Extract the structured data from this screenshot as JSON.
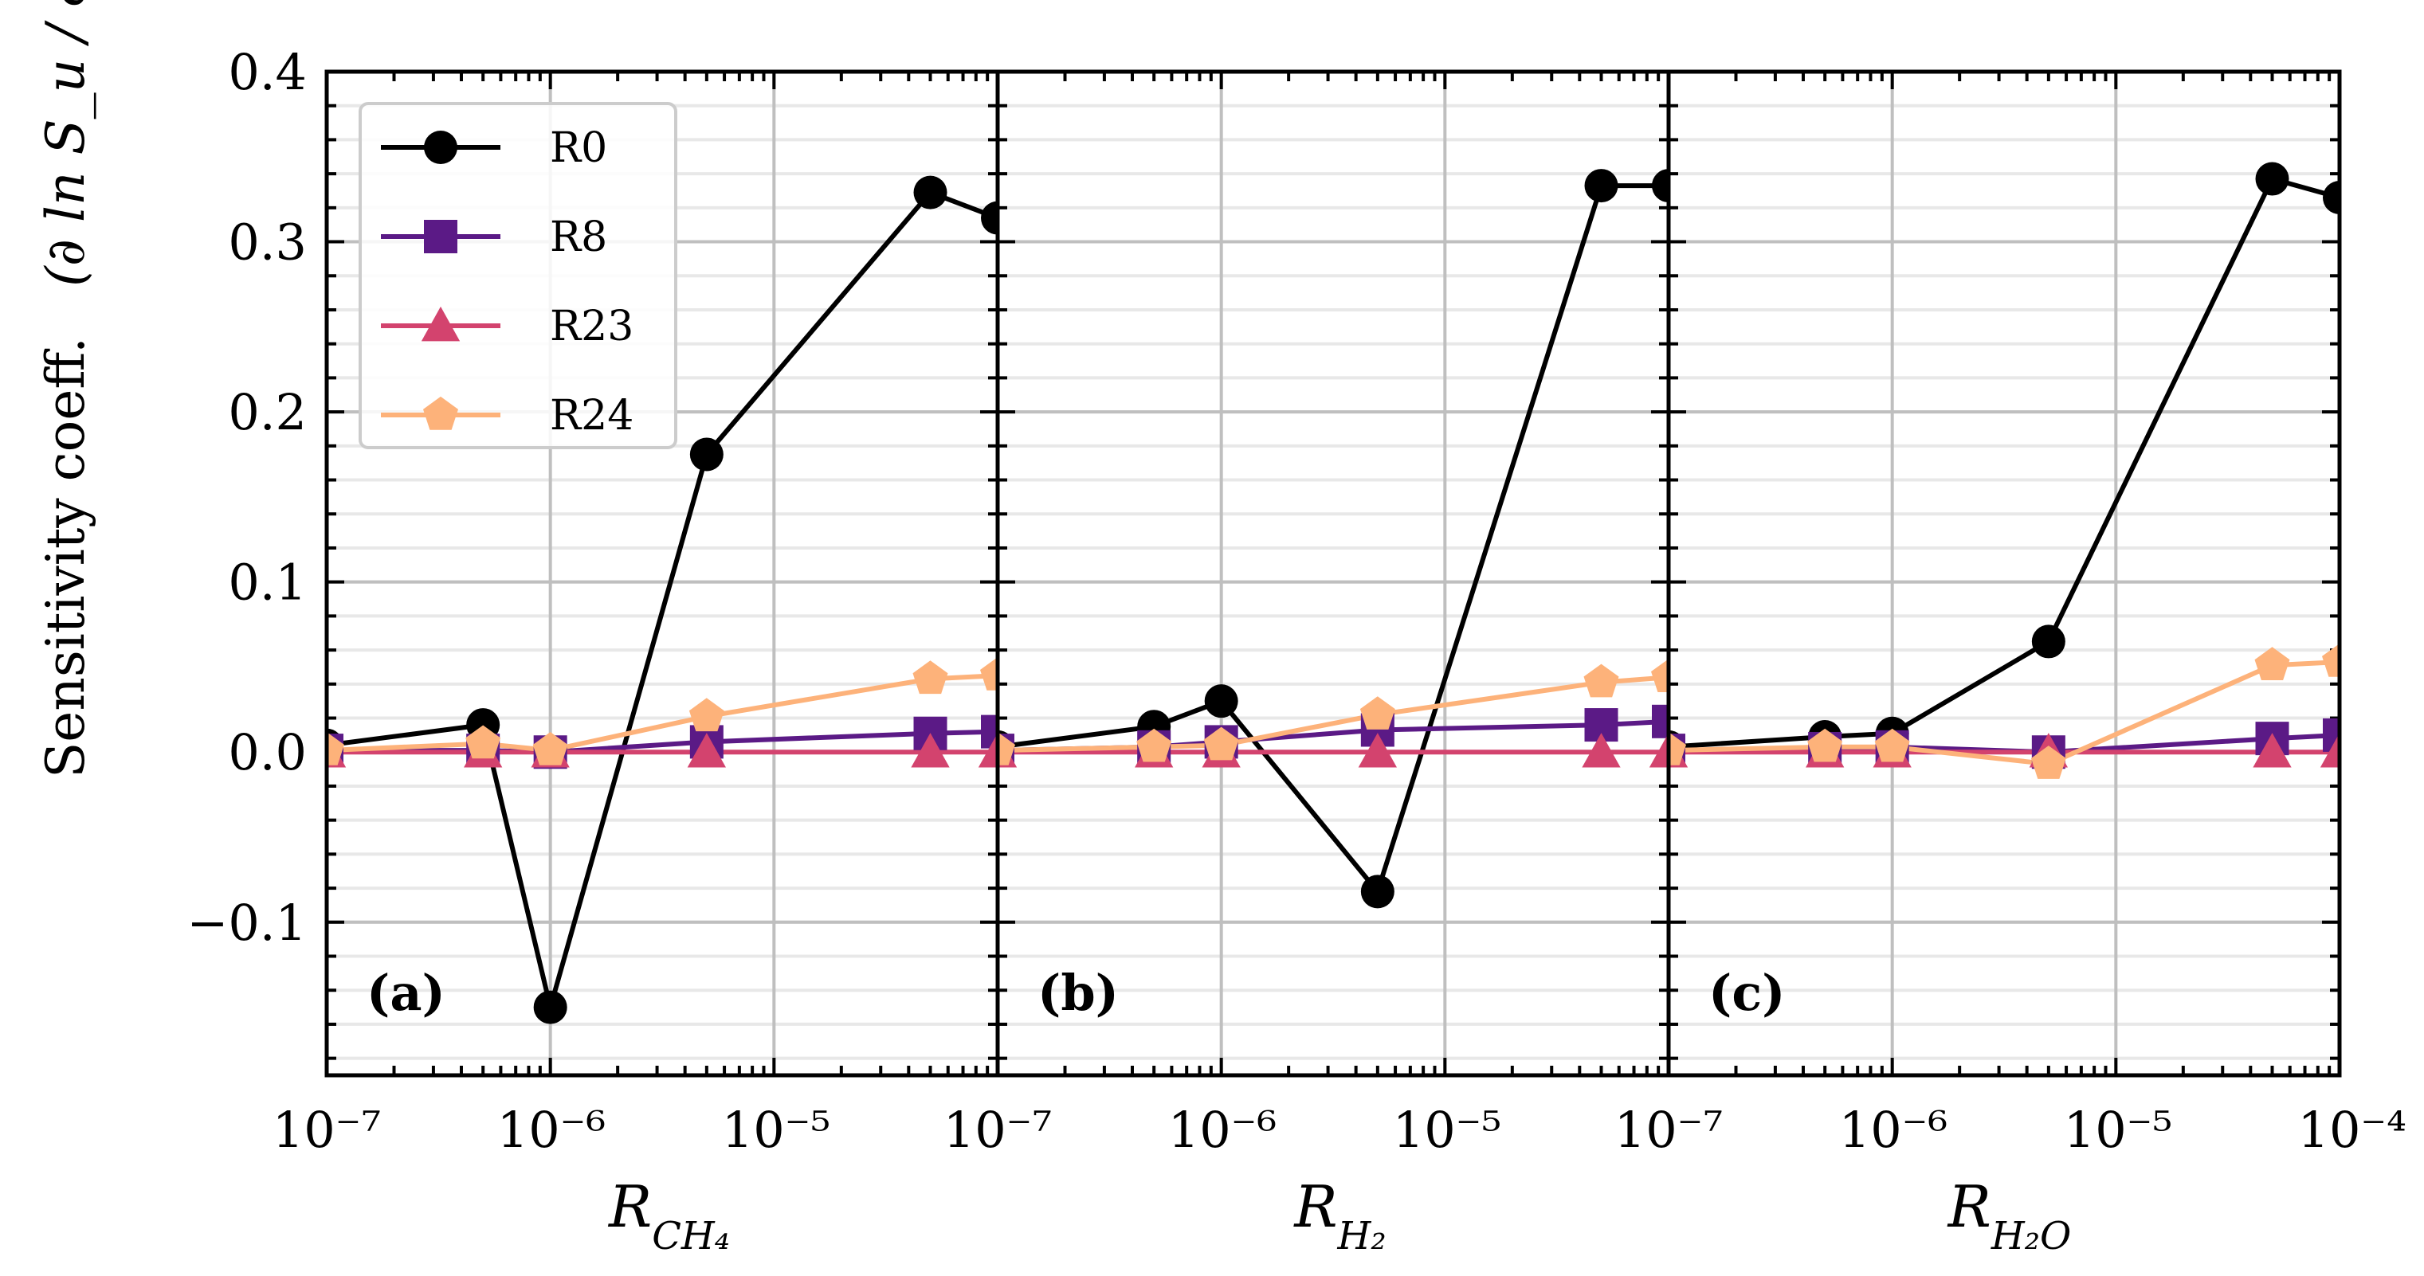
{
  "chart_data": [
    {
      "type": "line",
      "panel_label": "(a)",
      "xlabel": "R_CH4",
      "xscale": "log",
      "xlim": [
        1e-07,
        0.0001
      ],
      "ylim": [
        -0.19,
        0.4
      ],
      "x": [
        1e-07,
        5e-07,
        1e-06,
        5e-06,
        5e-05,
        0.0001
      ],
      "series": [
        {
          "name": "R0",
          "values": [
            0.004,
            0.016,
            -0.15,
            0.175,
            0.329,
            0.314
          ]
        },
        {
          "name": "R8",
          "values": [
            0.001,
            0.001,
            0.0,
            0.006,
            0.011,
            0.012
          ]
        },
        {
          "name": "R23",
          "values": [
            0.0,
            0.0,
            0.0,
            0.0,
            0.0,
            0.0
          ]
        },
        {
          "name": "R24",
          "values": [
            0.001,
            0.005,
            0.001,
            0.021,
            0.043,
            0.045
          ]
        }
      ]
    },
    {
      "type": "line",
      "panel_label": "(b)",
      "xlabel": "R_H2",
      "xscale": "log",
      "xlim": [
        1e-07,
        0.0001
      ],
      "ylim": [
        -0.19,
        0.4
      ],
      "x": [
        1e-07,
        5e-07,
        1e-06,
        5e-06,
        5e-05,
        0.0001
      ],
      "series": [
        {
          "name": "R0",
          "values": [
            0.003,
            0.015,
            0.03,
            -0.082,
            0.333,
            0.333
          ]
        },
        {
          "name": "R8",
          "values": [
            0.001,
            0.003,
            0.006,
            0.013,
            0.016,
            0.018
          ]
        },
        {
          "name": "R23",
          "values": [
            0.0,
            0.0,
            0.0,
            0.0,
            0.0,
            0.0
          ]
        },
        {
          "name": "R24",
          "values": [
            0.001,
            0.003,
            0.004,
            0.022,
            0.041,
            0.044
          ]
        }
      ]
    },
    {
      "type": "line",
      "panel_label": "(c)",
      "xlabel": "R_H2O",
      "xscale": "log",
      "xlim": [
        1e-07,
        0.0001
      ],
      "ylim": [
        -0.19,
        0.4
      ],
      "x": [
        1e-07,
        5e-07,
        1e-06,
        5e-06,
        5e-05,
        0.0001
      ],
      "series": [
        {
          "name": "R0",
          "values": [
            0.003,
            0.009,
            0.011,
            0.065,
            0.337,
            0.326
          ]
        },
        {
          "name": "R8",
          "values": [
            0.001,
            0.002,
            0.003,
            0.0,
            0.008,
            0.01
          ]
        },
        {
          "name": "R23",
          "values": [
            0.0,
            0.0,
            0.0,
            0.0,
            0.0,
            0.0
          ]
        },
        {
          "name": "R24",
          "values": [
            0.001,
            0.003,
            0.003,
            -0.007,
            0.051,
            0.053
          ]
        }
      ]
    }
  ],
  "figure": {
    "ylabel": "Sensitivity coeff.",
    "ylabel_formula": "(∂ ln S_u / ∂ ln k)",
    "legend_position": "upper-left",
    "grid": true,
    "y_ticks": [
      "0.4",
      "0.3",
      "0.2",
      "0.1",
      "0.0",
      "−0.1"
    ],
    "x_ticks": [
      "10⁻⁷",
      "10⁻⁶",
      "10⁻⁵",
      "10⁻⁷",
      "10⁻⁶",
      "10⁻⁵",
      "10⁻⁷",
      "10⁻⁶",
      "10⁻⁵",
      "10⁻⁴"
    ]
  },
  "legend": [
    {
      "name": "R0",
      "color": "#000000",
      "marker": "circle"
    },
    {
      "name": "R8",
      "color": "#5b1a86",
      "marker": "square"
    },
    {
      "name": "R23",
      "color": "#d3436e",
      "marker": "triangle"
    },
    {
      "name": "R24",
      "color": "#fdb27a",
      "marker": "pentagon"
    }
  ]
}
